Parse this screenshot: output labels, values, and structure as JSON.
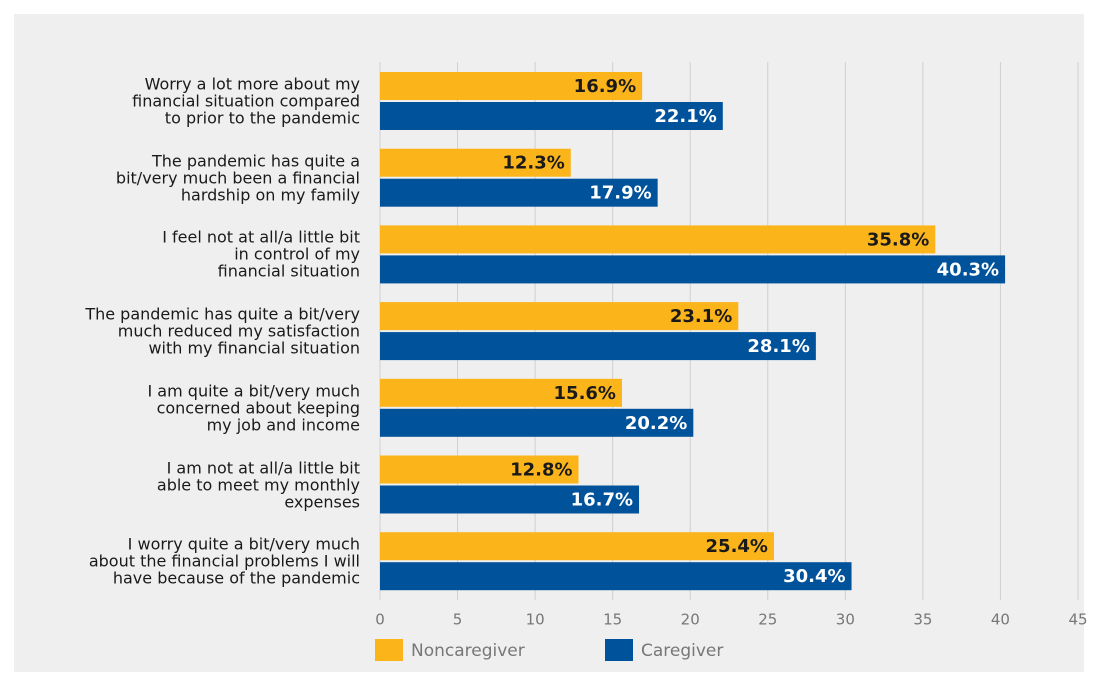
{
  "chart_data": {
    "type": "bar",
    "orientation": "horizontal",
    "categories": [
      "Worry a lot more about my\nfinancial situation compared\nto prior to the pandemic",
      "The pandemic has quite a\nbit/very much been a financial\nhardship on my family",
      "I feel not at all/a little bit\nin control of my\nfinancial situation",
      "The pandemic has quite a bit/very\nmuch reduced my satisfaction\nwith my financial situation",
      "I am quite a bit/very much\nconcerned about keeping\nmy job and income",
      "I am not at all/a little bit\nable to meet my monthly\nexpenses",
      "I worry quite a bit/very much\nabout the financial problems I will\nhave because of the pandemic"
    ],
    "series": [
      {
        "name": "Noncaregiver",
        "color": "#fbb51a",
        "label_color": "#1a1a1a",
        "values": [
          16.9,
          12.3,
          35.8,
          23.1,
          15.6,
          12.8,
          25.4
        ],
        "value_labels": [
          "16.9%",
          "12.3%",
          "35.8%",
          "23.1%",
          "15.6%",
          "12.8%",
          "25.4%"
        ]
      },
      {
        "name": "Caregiver",
        "color": "#00529b",
        "label_color": "#ffffff",
        "values": [
          22.1,
          17.9,
          40.3,
          28.1,
          20.2,
          16.7,
          30.4
        ],
        "value_labels": [
          "22.1%",
          "17.9%",
          "40.3%",
          "28.1%",
          "20.2%",
          "16.7%",
          "30.4%"
        ]
      }
    ],
    "xlim": [
      0,
      45
    ],
    "xticks": [
      0,
      5,
      10,
      15,
      20,
      25,
      30,
      35,
      40,
      45
    ],
    "grid": true
  }
}
